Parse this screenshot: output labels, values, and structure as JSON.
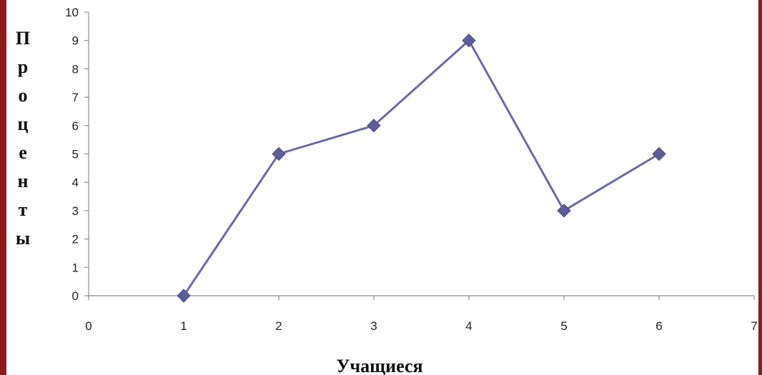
{
  "chart_data": {
    "type": "line",
    "x": [
      1,
      2,
      3,
      4,
      5,
      6
    ],
    "series": [
      {
        "values": [
          0,
          5,
          6,
          9,
          3,
          5
        ]
      }
    ],
    "xlabel": "Учащиеся",
    "ylabel": "Проценты",
    "ylabel_letters": [
      "П",
      "р",
      "о",
      "ц",
      "е",
      "н",
      "т",
      "ы"
    ],
    "xlim": [
      0,
      7
    ],
    "ylim": [
      0,
      10
    ],
    "x_ticks": [
      0,
      1,
      2,
      3,
      4,
      5,
      6,
      7
    ],
    "y_ticks": [
      0,
      1,
      2,
      3,
      4,
      5,
      6,
      7,
      8,
      9,
      10
    ],
    "grid": false,
    "legend": "none",
    "colors": {
      "line": "#6b6aa3",
      "marker": "#5e5d99",
      "axis": "#8c8c8c",
      "frame": "#8b1a1a"
    },
    "marker": "diamond"
  }
}
